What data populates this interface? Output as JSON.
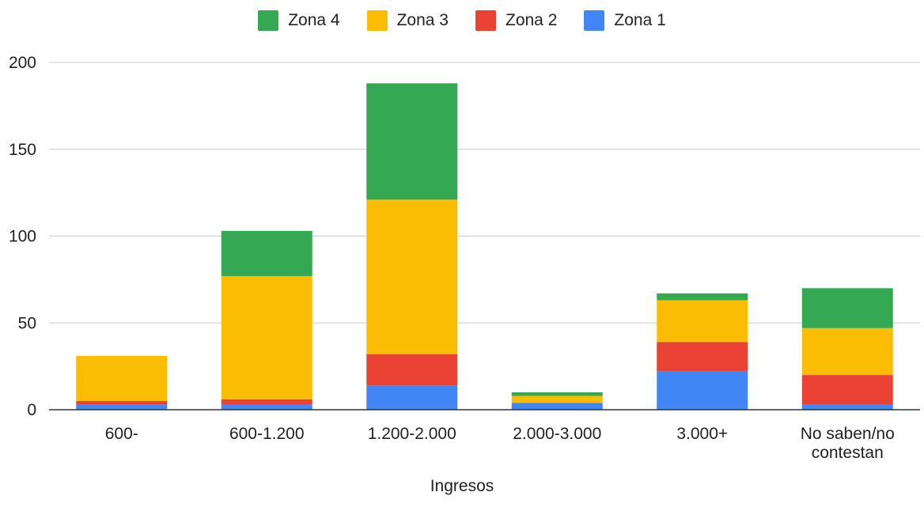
{
  "chart_data": {
    "type": "bar",
    "stacked": true,
    "categories": [
      "600-",
      "600-1.200",
      "1.200-2.000",
      "2.000-3.000",
      "3.000+",
      "No saben/no contestan"
    ],
    "category_lines": [
      [
        "600-"
      ],
      [
        "600-1.200"
      ],
      [
        "1.200-2.000"
      ],
      [
        "2.000-3.000"
      ],
      [
        "3.000+"
      ],
      [
        "No saben/no",
        "contestan"
      ]
    ],
    "series": [
      {
        "name": "Zona 1",
        "color": "#4285F4",
        "values": [
          3,
          3,
          14,
          4,
          22,
          3
        ]
      },
      {
        "name": "Zona 2",
        "color": "#EA4335",
        "values": [
          2,
          3,
          18,
          0,
          17,
          17
        ]
      },
      {
        "name": "Zona 3",
        "color": "#FBBC04",
        "values": [
          26,
          71,
          89,
          4,
          24,
          27
        ]
      },
      {
        "name": "Zona 4",
        "color": "#34A853",
        "values": [
          0,
          26,
          67,
          2,
          4,
          23
        ]
      }
    ],
    "legend_order": [
      "Zona 4",
      "Zona 3",
      "Zona 2",
      "Zona 1"
    ],
    "legend_position": "top",
    "title": "",
    "xlabel": "Ingresos",
    "ylabel": "",
    "ylim": [
      0,
      200
    ],
    "yticks": [
      "0",
      "50",
      "100",
      "150",
      "200"
    ],
    "grid": true,
    "grid_color": "#cccccc"
  }
}
